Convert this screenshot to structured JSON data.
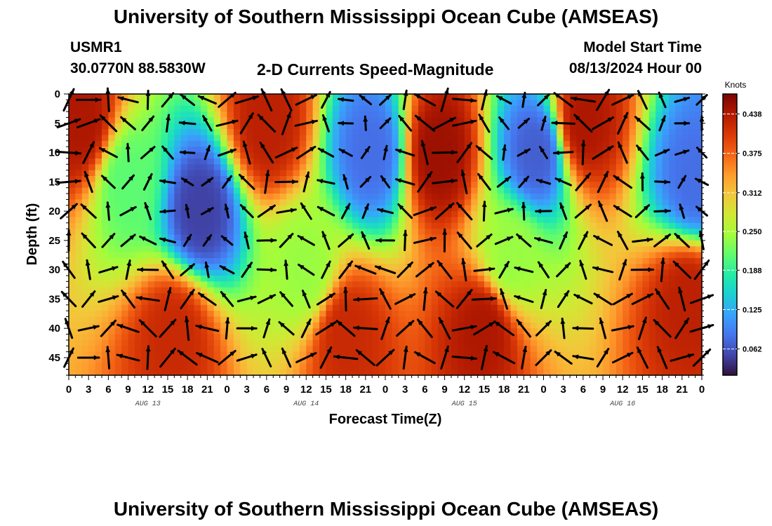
{
  "header": {
    "title": "University of Southern Mississippi Ocean Cube (AMSEAS)",
    "station": "USMR1",
    "coords": "30.0770N  88.5830W",
    "subtitle": "2-D Currents Speed-Magnitude",
    "model_start_label": "Model Start Time",
    "model_start_value": "08/13/2024 Hour 00"
  },
  "footer": {
    "title": "University of Southern Mississippi Ocean Cube (AMSEAS)"
  },
  "colors": {
    "scale": [
      "#30123b",
      "#4145ab",
      "#4675ed",
      "#39a2fc",
      "#1bcfd4",
      "#24eca6",
      "#61fc6c",
      "#a4fc3b",
      "#d1e834",
      "#f3c63a",
      "#fe9b2d",
      "#f36315",
      "#d93806",
      "#b11901",
      "#7a0402"
    ]
  },
  "chart_data": {
    "type": "heatmap",
    "title": "2-D Currents Speed-Magnitude",
    "xlabel": "Forecast Time(Z)",
    "ylabel": "Depth (ft)",
    "x_ticks": [
      "0",
      "3",
      "6",
      "9",
      "12",
      "15",
      "18",
      "21",
      "0",
      "3",
      "6",
      "9",
      "12",
      "15",
      "18",
      "21",
      "0",
      "3",
      "6",
      "9",
      "12",
      "15",
      "18",
      "21",
      "0",
      "3",
      "6",
      "9",
      "12",
      "15",
      "18",
      "21",
      "0"
    ],
    "x_range_hours": [
      0,
      96
    ],
    "date_labels": [
      {
        "label": "AUG 13",
        "hour": 12
      },
      {
        "label": "AUG 14",
        "hour": 36
      },
      {
        "label": "AUG 15",
        "hour": 60
      },
      {
        "label": "AUG 16",
        "hour": 84
      }
    ],
    "y_ticks": [
      "0",
      "5",
      "10",
      "15",
      "20",
      "25",
      "30",
      "35",
      "40",
      "45"
    ],
    "y_tick_values": [
      0,
      5,
      10,
      15,
      20,
      25,
      30,
      35,
      40,
      45
    ],
    "y_range_ft": [
      0,
      48
    ],
    "colorbar": {
      "units": "Knots",
      "labels": [
        "0.438",
        "0.375",
        "0.312",
        "0.250",
        "0.188",
        "0.125",
        "0.062"
      ],
      "label_values": [
        0.438,
        0.375,
        0.312,
        0.25,
        0.188,
        0.125,
        0.062
      ],
      "range": [
        0.02,
        0.47
      ]
    },
    "speed_samples_knots": [
      {
        "hour": 2,
        "depth": 5,
        "value": 0.44
      },
      {
        "hour": 9,
        "depth": 15,
        "value": 0.21
      },
      {
        "hour": 20,
        "depth": 20,
        "value": 0.05
      },
      {
        "hour": 16,
        "depth": 41,
        "value": 0.42
      },
      {
        "hour": 30,
        "depth": 5,
        "value": 0.43
      },
      {
        "hour": 36,
        "depth": 30,
        "value": 0.24
      },
      {
        "hour": 42,
        "depth": 41,
        "value": 0.42
      },
      {
        "hour": 46,
        "depth": 10,
        "value": 0.08
      },
      {
        "hour": 56,
        "depth": 10,
        "value": 0.45
      },
      {
        "hour": 63,
        "depth": 40,
        "value": 0.44
      },
      {
        "hour": 67,
        "depth": 28,
        "value": 0.24
      },
      {
        "hour": 71,
        "depth": 10,
        "value": 0.07
      },
      {
        "hour": 78,
        "depth": 5,
        "value": 0.44
      },
      {
        "hour": 94,
        "depth": 35,
        "value": 0.43
      },
      {
        "hour": 95,
        "depth": 15,
        "value": 0.08
      }
    ],
    "vector_grid": {
      "hour_step": 3,
      "depth_levels": [
        1,
        5,
        10,
        15,
        20,
        25,
        30,
        35,
        40,
        45
      ]
    }
  }
}
